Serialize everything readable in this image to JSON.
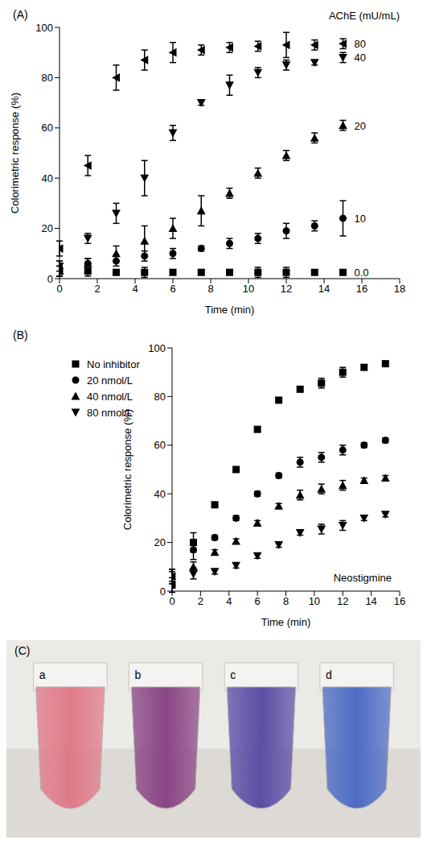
{
  "chart_data": [
    {
      "type": "scatter",
      "title": "(A)",
      "legend_title": "AChE (mU/mL)",
      "x_label": "Time (min)",
      "y_label": "Colorimetric response (%)",
      "x": [
        0,
        1.5,
        3,
        4.5,
        6,
        7.5,
        9,
        10.5,
        12,
        13.5,
        15
      ],
      "xlim": [
        0,
        18
      ],
      "xticks": [
        0,
        2,
        4,
        6,
        8,
        10,
        12,
        14,
        16,
        18
      ],
      "ylim": [
        0,
        100
      ],
      "yticks": [
        0,
        20,
        40,
        60,
        80,
        100
      ],
      "grid": false,
      "legend": "right",
      "series": [
        {
          "name": "80",
          "color": "#000000",
          "marker": "triangle-left",
          "values": [
            12,
            45,
            80,
            87,
            90,
            91,
            92,
            92.5,
            93,
            93,
            93.5
          ],
          "errors": [
            3,
            4,
            5,
            4,
            4,
            2,
            2,
            2,
            5,
            2,
            2
          ]
        },
        {
          "name": "40",
          "color": "#000000",
          "marker": "triangle-down",
          "values": [
            5,
            16,
            26,
            40,
            58,
            70,
            77,
            82,
            85,
            86,
            88
          ],
          "errors": [
            2,
            2,
            4,
            7,
            3,
            1,
            4,
            2,
            2,
            1,
            2
          ]
        },
        {
          "name": "20",
          "color": "#000000",
          "marker": "triangle-up",
          "values": [
            3,
            6,
            10,
            15,
            20,
            27,
            34,
            42,
            49,
            56,
            61
          ],
          "errors": [
            2,
            2,
            3,
            6,
            4,
            6,
            2,
            2,
            2,
            2,
            2
          ]
        },
        {
          "name": "10",
          "color": "#000000",
          "marker": "circle",
          "values": [
            4,
            6,
            7,
            9,
            10,
            12,
            14,
            16,
            19,
            21,
            24
          ],
          "errors": [
            3,
            2,
            2,
            2,
            2,
            1,
            2,
            2,
            3,
            2,
            7
          ]
        },
        {
          "name": "0.0",
          "color": "#000000",
          "marker": "square",
          "values": [
            3,
            3,
            2.5,
            2.5,
            2.5,
            2.5,
            2.5,
            2.5,
            2.5,
            2.5,
            2.5
          ],
          "errors": [
            2,
            2,
            1,
            2,
            1,
            1,
            1,
            2,
            2,
            1,
            1
          ]
        }
      ]
    },
    {
      "type": "scatter",
      "title": "(B)",
      "annotations": [
        "Neostigmine"
      ],
      "x_label": "Time (min)",
      "y_label": "Colorimetric response (%)",
      "x": [
        0,
        1.5,
        3,
        4.5,
        6,
        7.5,
        9,
        10.5,
        12,
        13.5,
        15
      ],
      "xlim": [
        0,
        16
      ],
      "xticks": [
        0,
        2,
        4,
        6,
        8,
        10,
        12,
        14,
        16
      ],
      "ylim": [
        0,
        100
      ],
      "yticks": [
        0,
        20,
        40,
        60,
        80,
        100
      ],
      "grid": false,
      "legend": "upper left",
      "series": [
        {
          "name": "No inhibitor",
          "color": "#000000",
          "marker": "square",
          "values": [
            2.5,
            20,
            35.5,
            50,
            66.5,
            78.5,
            83,
            85.5,
            90,
            92,
            93.5
          ],
          "errors": [
            3,
            4,
            1,
            1,
            1,
            1,
            1,
            2,
            2,
            1,
            1
          ]
        },
        {
          "name": "20 nmol/L",
          "color": "#000000",
          "marker": "circle",
          "values": [
            6,
            17,
            22,
            30,
            40,
            47.5,
            53,
            55,
            58,
            60,
            62
          ],
          "errors": [
            3,
            4,
            1,
            1,
            1,
            1,
            2,
            2,
            2,
            1,
            1
          ]
        },
        {
          "name": "40 nmol/L",
          "color": "#000000",
          "marker": "triangle-up",
          "values": [
            6,
            10,
            16,
            20.5,
            28,
            35,
            39.5,
            42,
            43.5,
            45.5,
            46.5
          ],
          "errors": [
            3,
            2,
            1,
            1,
            1,
            1,
            2,
            2,
            2,
            1,
            1
          ]
        },
        {
          "name": "80 nmol/L",
          "color": "#000000",
          "marker": "triangle-down",
          "values": [
            6,
            7,
            8,
            10.5,
            14.5,
            19,
            24,
            25.5,
            27,
            30,
            31.5
          ],
          "errors": [
            2,
            2,
            1,
            1,
            1,
            1,
            1,
            2,
            2,
            1,
            1
          ]
        }
      ]
    }
  ],
  "photo": {
    "title": "(C)",
    "tubes": [
      {
        "label": "a",
        "color": "#e07a88"
      },
      {
        "label": "b",
        "color": "#8a4585"
      },
      {
        "label": "c",
        "color": "#5b4ea6"
      },
      {
        "label": "d",
        "color": "#4d6cc4"
      }
    ]
  }
}
